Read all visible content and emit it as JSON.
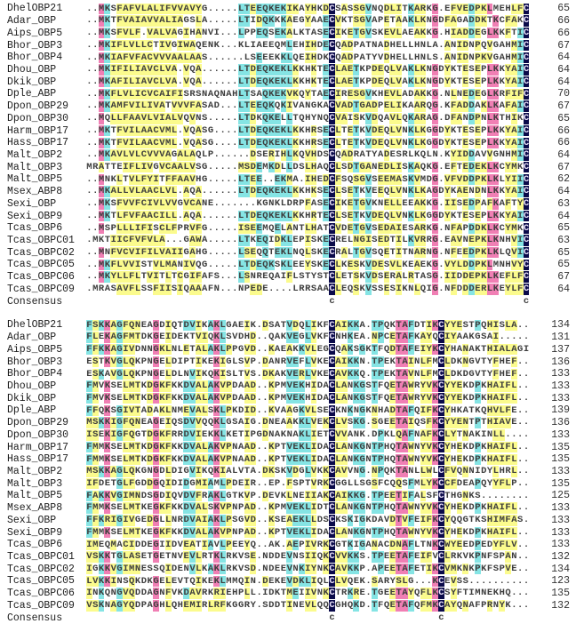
{
  "figure": {
    "kind": "multiple-sequence-alignment",
    "consensus_label": "Consensus"
  },
  "palette": {
    "background": "#ffffff",
    "sequence_text": "#3d3d3d",
    "name_text": "#1c1c1c",
    "number_text": "#333333",
    "shade_identity_100_bg": "#0a0a4a",
    "shade_identity_100_text": "#ece4fa",
    "shade_identity_75_bg": "#f07fb4",
    "shade_identity_50_bg": "#85e4e4",
    "shade_similar_bg": "#fbfb8d"
  },
  "shading": {
    "thresholds": {
      "navy": 1.0,
      "pink": 0.75,
      "cyan": 0.5,
      "yellow": 0.33
    },
    "similarity_groups": [
      "AVLIMFWCY",
      "KRH",
      "DE",
      "STNQ",
      "G",
      "P"
    ]
  },
  "blocks": [
    {
      "rows": [
        {
          "name": "DhelOBP21",
          "sequence": "..MKSFAFVLALIFVVAVYG.....LTEEQKEKIKAYHKDCSASSGVNQDLITKARKG.EFVEDPKLMEHLFC",
          "end": "65"
        },
        {
          "name": "Adar_OBP",
          "sequence": "..MKTFVAIAVVALIAGSLA.....LTIDQKKKAEGYAAECVKTSGVAPETAAKLKNGDFAGADDKTKCFAKC",
          "end": "66"
        },
        {
          "name": "Aips_OBP5",
          "sequence": "..MKSFVLF.VALVAGIHANVI...LPPEQSEKALKTASECIKETGVSKEVLAEAKKG.HIADDEGLKKFTIC",
          "end": "66"
        },
        {
          "name": "Bhor_OBP3",
          "sequence": "..MKIFLVLLCTIVGIWAQENK...KLIAEEQMLEHIHDECQADPATNADHELLHNLA.ANIDNPQVGAHMIC",
          "end": "67"
        },
        {
          "name": "Bhor_OBP4",
          "sequence": "..MKIAFVFACVVVAALAAS......LSEEEKKLQEIHDKCQADPATYVDHELLHNLS.ANIDNPKVGAHMIC",
          "end": "64"
        },
        {
          "name": "Dhou_OBP",
          "sequence": "..MKIFILIAVCLVA.VQA......LTDEQKEKLKKHKTECLAETKPDEQLVAKLKNGDYKTESEPLKKYAIC",
          "end": "64"
        },
        {
          "name": "Dkik_OBP",
          "sequence": "..MKAFILIAVCLVA.VQA......LTDEQKEKLKKHKTECLAETKPDEQLVAKLKNGDYKTESEPLKKYAIC",
          "end": "64"
        },
        {
          "name": "Dple_ABP",
          "sequence": "..MKFLVLICVCAIFISRSNAQNAHLTSAQKEKVKQYTAECIRESGVKHEVLADAKKG.NLNEDEGLKRFIFC",
          "end": "70"
        },
        {
          "name": "Dpon_OBP29",
          "sequence": "..MKAMFVILIVATVVVFASAD...LTEEQKQKIVANGKACVADTGADPELIKAARQG.KFADDAKLKAFAIC",
          "end": "67"
        },
        {
          "name": "Dpon_OBP30",
          "sequence": "..MQLLFAAVLVIALVQVNS.....LTDKQKELLTQHYNQCVAISKVDQAVLQKARAG.DFANDPNLKTHIKC",
          "end": "65"
        },
        {
          "name": "Harm_OBP17",
          "sequence": "..MKTFVILAACVML.VQASG....LTDEQKEKLKKHRSECLTETKVDEQLVNKLKGGDYKTESEPLKKYAIC",
          "end": "66"
        },
        {
          "name": "Hass_OBP17",
          "sequence": "..MKTFVILAACVML.VQASG....LTDEQKEKLKKHRSECLTETKVDEQLVNKLKGGDYKTESEPLKKYAIC",
          "end": "66"
        },
        {
          "name": "Malt_OBP2",
          "sequence": "..MKAVLVLCVVVAGALAQLP......DSERIHLKQVHDSCQADRATYADESRLKQLN.KYIDDAVVGNHMIC",
          "end": "64"
        },
        {
          "name": "Malt_OBP3",
          "sequence": "MRATTEIFLIVGVCAALVSG.....MSDEMKDLLDSLHAQCLSDTGANEDLISKAQKG.EFTEDEKLKCYMKC",
          "end": "67"
        },
        {
          "name": "Malt_OBP5",
          "sequence": "..MNKLTVLFYITFFAAVHG.....LTEE..EKMA.IHEDCFSQSGVSEEMASKVMDG.VFVDDPKLKLYIIC",
          "end": "62"
        },
        {
          "name": "Msex_ABP8",
          "sequence": "..MKALLVLAACLVL.AQA......LTDEQKEKLKKHKSECLSETKVEEQLVNKLKAGDYKAENDNLKKYAIC",
          "end": "64"
        },
        {
          "name": "Sexi_OBP",
          "sequence": "..MKSFVVFCIVLVVGVCANE.......KGNKLDRPFASECIKETGVKNELLEEAKKG.IISEDPAFKAFTYC",
          "end": "63"
        },
        {
          "name": "Sexi_OBP9",
          "sequence": "..MKTLFVFAACILL.AQA......LTDEQKEKLKKHRTECLSETKVDEQLVNKLKGGDYKTESEPLKKYAIC",
          "end": "64"
        },
        {
          "name": "Tcas_OBP6",
          "sequence": "..MSPLLLIFISCLFPRVFG.....ISEEMQELANTLHATCVDETGVSEDAIESARKG.NFAPDDKLKCYMKC",
          "end": "65"
        },
        {
          "name": "Tcas_OBPC01",
          "sequence": ".MKTIICFVFVLA...GAWA.....LTKEQIDKLEPISKECRELNGISEDTILKVRRG.EAVNEPKLKNHVIC",
          "end": "63"
        },
        {
          "name": "Tcas_OBPC02",
          "sequence": "..MNFVCVIFILVAIIGAHG.....LSEQQTEKLNQLSKECRALTGVSQETITNARNG.NFEEDPKLKLQVIC",
          "end": "65"
        },
        {
          "name": "Tcas_OBPC05",
          "sequence": "..MKFLVVISTVLMANIVQG.....LTDEQKSKLEEYSKECLKESKVDESVLKEAEKG.VYLDDPKLMNHVYC",
          "end": "65"
        },
        {
          "name": "Tcas_OBPC06",
          "sequence": "..MKYLLFLTVITLTCGIFAFS...LSNREQAIFLSTYSTCLETSKVDSERALRTASG.IIDDEPKLKEFLFC",
          "end": "67"
        },
        {
          "name": "Tcas_OBPC09",
          "sequence": ".MRASAVFLSSFIISIQAAAFN...NPEDE....LRRSAACLEQSKVSSESIKNLQIG.NFDDDERLKEYLFC",
          "end": "64"
        }
      ],
      "consensus": "                                        c                               c"
    },
    {
      "rows": [
        {
          "name": "DhelOBP21",
          "sequence": "FSKKAGFQNEAGDIQTDVIKAKLGAEIK.DSATVDQLIKFCAIKKA.TPQKTAFDTIKCYYESTPQHISLA..",
          "end": "134"
        },
        {
          "name": "Adar_OBP",
          "sequence": "FLEKAGFMTDKGEIDEKTVIQKLSVDHD..QAKVEGLVKFCNHKEA.NPCETAFKAYQCIYAAKGSAI.....",
          "end": "131"
        },
        {
          "name": "Aips_OBP5",
          "sequence": "FFKKAGIVDNNGKLNLETALAKLPPGVD..KAEAKKVLEGCQAKSGKTFQDTAFEIYKCYHANAKTHIALAGI",
          "end": "137"
        },
        {
          "name": "Bhor_OBP3",
          "sequence": "ESTKVGLQKPNGELDIPTIKEKIGLSVP.DANRVEFLVKECAIKKN.TPEKTAINLFMCLDKNGVTYFHEF..",
          "end": "136"
        },
        {
          "name": "Bhor_OBP4",
          "sequence": "ESKAVGLQKPNGELDLNVIKQKISLTVS.DKAKVERLVKECAVKKQ.TPEKTAVNLFMCLDKDGVTYFHEF..",
          "end": "133"
        },
        {
          "name": "Dhou_OBP",
          "sequence": "FMVKSELMTKDGKFKKDVALAKVPDAAD..KPMVEKHIDACLANKGSTFQETAWRYVKCYYEKDPKHAIFL..",
          "end": "133"
        },
        {
          "name": "Dkik_OBP",
          "sequence": "FMVKSELMTKDGKFKKDVALAKVPDAAD..KPMVEKHIDACLANKGSTFQETAWRYVKCYYEKDPKHAIFL..",
          "end": "133"
        },
        {
          "name": "Dple_ABP",
          "sequence": "FFQKSGIVTADAKLNMEVALSKLPKDID..KVAAGKVLSECKNKNGKNHADTAFQIFKCYHKATKQHVLFE..",
          "end": "139"
        },
        {
          "name": "Dpon_OBP29",
          "sequence": "MSKKIGFQNEAGEIQSDVVQQKLGSAIG.DNEAAKKLVEKCLVSKG.SGEETAIQSFKCYYENTPTHIAVE..",
          "end": "136"
        },
        {
          "name": "Dpon_OBP30",
          "sequence": "ISEKIGFQGTDGKFRRDVIEKKLKETIPGDNAKNAKLIETCVVANK.DPKLQAFNAFKCLYTNAKINLL....",
          "end": "133"
        },
        {
          "name": "Harm_OBP17",
          "sequence": "FMMKSELMTKDGKFKKDVALAKVPNAAD..KPTVEKLIDACLANKGNTPHQTAWNYVKCYHEKDPKHAIFL..",
          "end": "135"
        },
        {
          "name": "Hass_OBP17",
          "sequence": "FMMKSELMTKDGKFKKDVALAKVPNAAD..KPTVEKLIDACLANKGNTPHQTAWNYVKCYHEKDPKHAIFL..",
          "end": "135"
        },
        {
          "name": "Malt_OBP2",
          "sequence": "MSKKAGLQKGNGDLDIGVIKQKIALVTA.DKSKVDGLVKKCAVVNG.NPQKTANLLWLCFVQNNIDYLHRL..",
          "end": "133"
        },
        {
          "name": "Malt_OBP3",
          "sequence": "IFDETGLFGDDGQIDIDGMIAMLPDEIR..EP.FSPTVRKCGGLLSGSFCQQSFMLYKCCFDEAPQYYFLP..",
          "end": "135"
        },
        {
          "name": "Malt_OBP5",
          "sequence": "FAKKVGIMNDSGDIQVDVFRAKLGTKVP.DEVKLNEIIAKCAIKKG.TPEETIFALSFCTHGNKS........",
          "end": "125"
        },
        {
          "name": "Msex_ABP8",
          "sequence": "FMMKSELMTKEGKFKKDVALSKVPNPAD..KPMVEKLIDTCLANKGNTPHQTAWNYVKCYHEKDPKHAIFL..",
          "end": "133"
        },
        {
          "name": "Sexi_OBP",
          "sequence": "FFKRIGIVGEDGLLNRDVAIAKLPSGVD..KSEAEKLLDSCKSKIGKDAVDTVFEIFKCYQQGTKSHIMFAS.",
          "end": "133"
        },
        {
          "name": "Sexi_OBP9",
          "sequence": "FMMKSELMTKEGKFKKDVALAKVPNPAD..KPTVEKLIDACLANKGNTPHQTAWNYVKCYHEKDPKHAIFL..",
          "end": "133"
        },
        {
          "name": "Tcas_OBP6",
          "sequence": "IMEQMACIDDEGIIDVEATIAVLPEEYQ..AK.AEPIVRKCGTKIGANACDNAFLTNKCWYEEDPEDYFLV..",
          "end": "133"
        },
        {
          "name": "Tcas_OBPC01",
          "sequence": "VSKKTGLASETGETNVEVLRTKLRKVSE.NDDEVNSIIQKCVVKKS.TPEETAFEIFVCLRKVKPNFSPAN..",
          "end": "132"
        },
        {
          "name": "Tcas_OBPC02",
          "sequence": "IGKKVGIMNESSQIDENVLKAKLRKVSD.NDEEVNKIYNKCAVKKP.APEETAFETIKCVMKNKPKFSPVE..",
          "end": "134"
        },
        {
          "name": "Tcas_OBPC05",
          "sequence": "LVKKINSQKDKGELEVTQIKEKLMMQIN.DEKEVDKLIQLCLVQEK.SARYSLG...KCEVSS..........",
          "end": "123"
        },
        {
          "name": "Tcas_OBPC06",
          "sequence": "INKQNGVQDDAGNFVKDAVRKRIEHPLL.IDKTMEIIVNKCTRKRE.TGEETAYQFLKCSYFTIMNEKHQ...",
          "end": "135"
        },
        {
          "name": "Tcas_OBPC09",
          "sequence": "VSKNAGYQDPAGHLQHEMIRLRFKGGRY.SDDTINEVLQQCGHQKD.TFQETAFQFMKCAYQNAFPRNYK...",
          "end": "132"
        }
      ],
      "consensus": "                                        c                 c              "
    }
  ]
}
